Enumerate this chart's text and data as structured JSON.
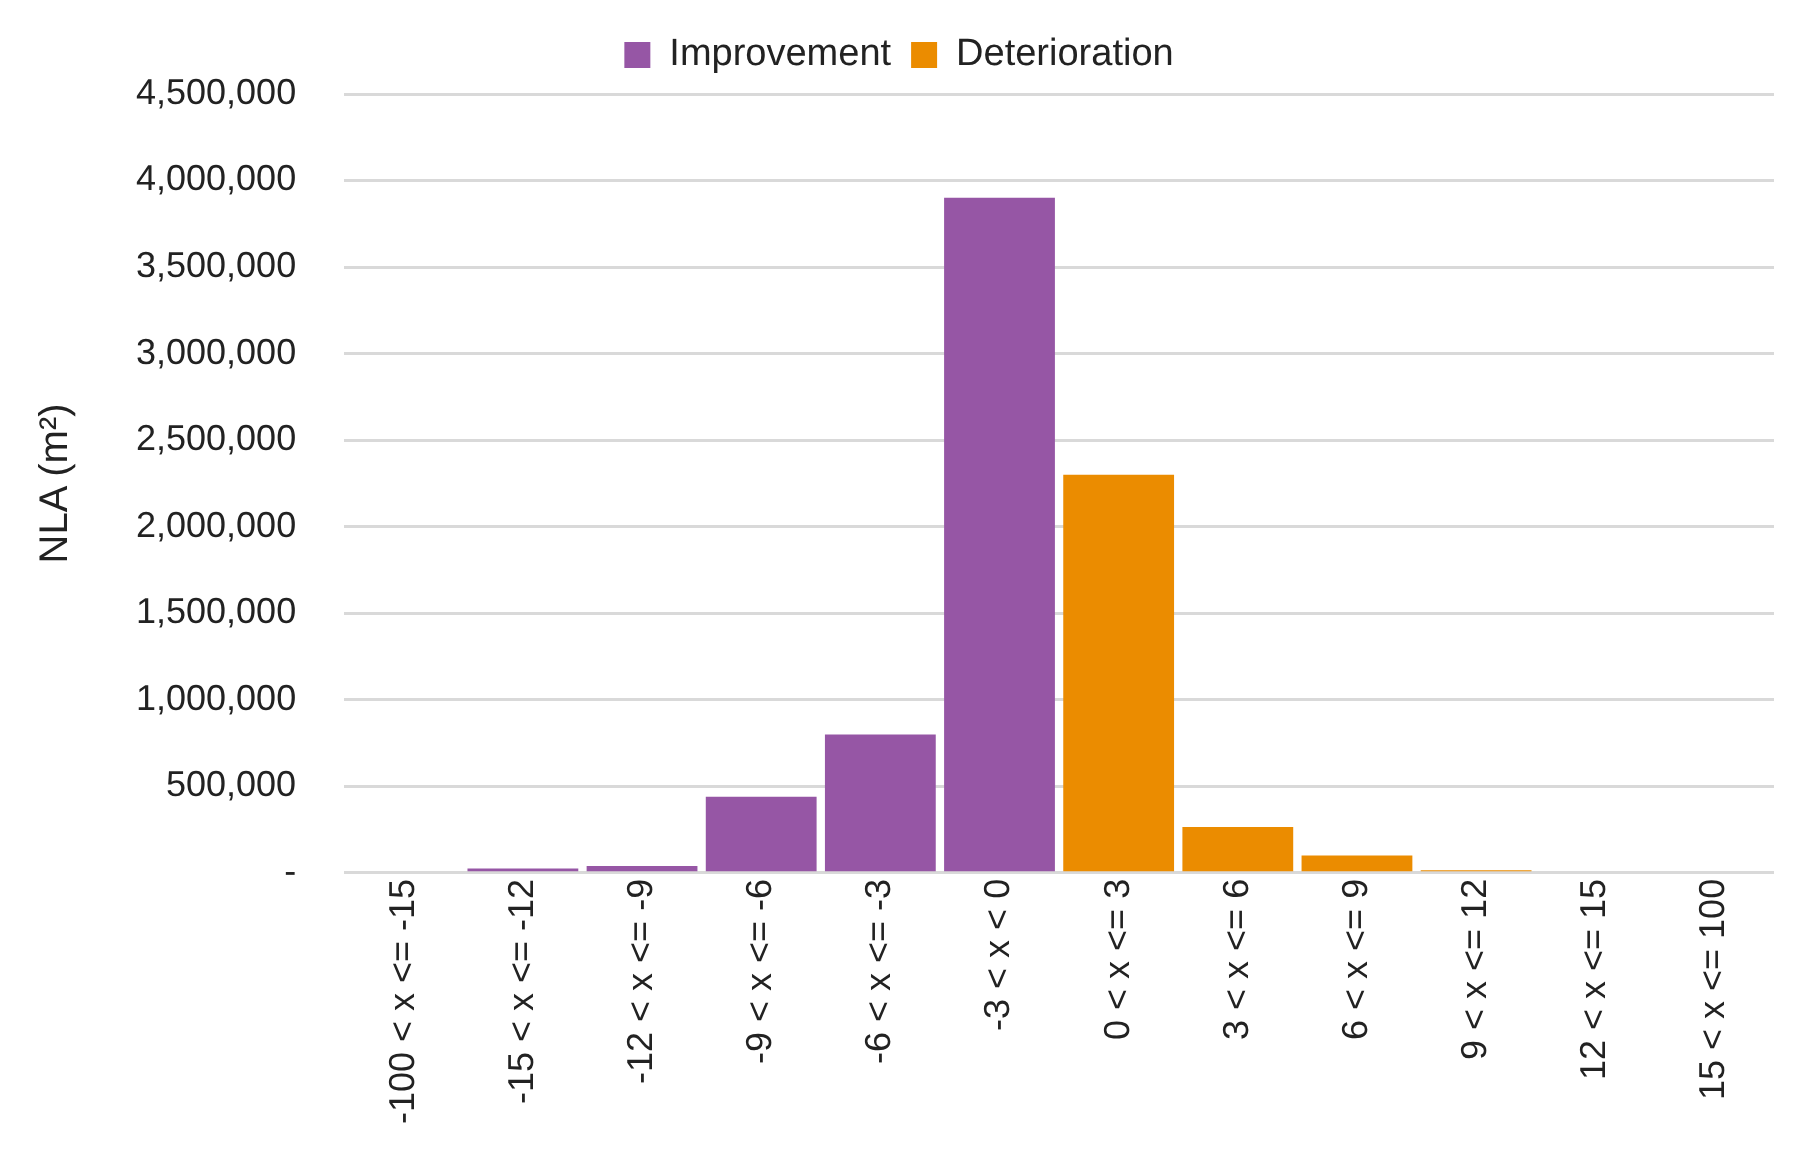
{
  "chart_data": {
    "type": "bar",
    "ylabel": "NLA (m²)",
    "categories": [
      "-100 < x <= -15",
      "-15 < x <= -12",
      "-12 < x <= -9",
      "-9 < x <= -6",
      "-6 < x <= -3",
      "-3 < x < 0",
      "0 < x <= 3",
      "3 < x <= 6",
      "6 < x <= 9",
      "9 < x <= 12",
      "12 < x <= 15",
      "15 < x <= 100"
    ],
    "series": [
      {
        "name": "Improvement",
        "color": "#9656a5",
        "values": [
          0,
          25000,
          40000,
          440000,
          800000,
          3900000,
          null,
          null,
          null,
          null,
          null,
          null
        ]
      },
      {
        "name": "Deterioration",
        "color": "#eb8c00",
        "values": [
          null,
          null,
          null,
          null,
          null,
          null,
          2300000,
          265000,
          100000,
          15000,
          0,
          0
        ]
      }
    ],
    "stacked": true,
    "ylim": [
      0,
      4500000
    ],
    "yticks": [
      {
        "value": 0,
        "label": "-"
      },
      {
        "value": 500000,
        "label": "500,000"
      },
      {
        "value": 1000000,
        "label": "1,000,000"
      },
      {
        "value": 1500000,
        "label": "1,500,000"
      },
      {
        "value": 2000000,
        "label": "2,000,000"
      },
      {
        "value": 2500000,
        "label": "2,500,000"
      },
      {
        "value": 3000000,
        "label": "3,000,000"
      },
      {
        "value": 3500000,
        "label": "3,500,000"
      },
      {
        "value": 4000000,
        "label": "4,000,000"
      },
      {
        "value": 4500000,
        "label": "4,500,000"
      }
    ],
    "grid": "y",
    "legend": "top"
  }
}
